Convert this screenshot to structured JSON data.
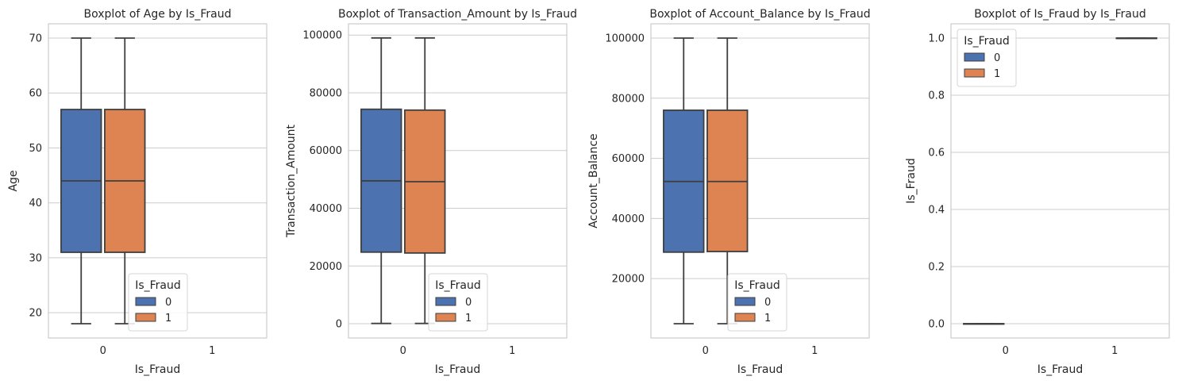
{
  "chart_data": [
    {
      "type": "boxplot",
      "title": "Boxplot of Age by Is_Fraud",
      "xlabel": "Is_Fraud",
      "ylabel": "Age",
      "categories": [
        "0",
        "1"
      ],
      "ylim": [
        15.4,
        72.6
      ],
      "yticks": [
        20,
        30,
        40,
        50,
        60,
        70
      ],
      "ytick_labels": [
        "20",
        "30",
        "40",
        "50",
        "60",
        "70"
      ],
      "series": [
        {
          "name": "0",
          "stats": [
            {
              "whislo": 18,
              "q1": 31,
              "med": 44,
              "q3": 57,
              "whishi": 70
            }
          ]
        },
        {
          "name": "1",
          "stats": [
            {
              "whislo": 18,
              "q1": 31,
              "med": 44,
              "q3": 57,
              "whishi": 70
            }
          ]
        }
      ],
      "legend": {
        "title": "Is_Fraud",
        "placement": "lower-center"
      },
      "grid": "y"
    },
    {
      "type": "boxplot",
      "title": "Boxplot of Transaction_Amount by Is_Fraud",
      "xlabel": "Is_Fraud",
      "ylabel": "Transaction_Amount",
      "categories": [
        "0",
        "1"
      ],
      "ylim": [
        -4940,
        103900
      ],
      "yticks": [
        0,
        20000,
        40000,
        60000,
        80000,
        100000
      ],
      "ytick_labels": [
        "0",
        "20000",
        "40000",
        "60000",
        "80000",
        "100000"
      ],
      "series": [
        {
          "name": "0",
          "stats": [
            {
              "whislo": 100,
              "q1": 24800,
              "med": 49500,
              "q3": 74300,
              "whishi": 99000
            }
          ]
        },
        {
          "name": "1",
          "stats": [
            {
              "whislo": 100,
              "q1": 24500,
              "med": 49200,
              "q3": 74000,
              "whishi": 99000
            }
          ]
        }
      ],
      "legend": {
        "title": "Is_Fraud",
        "placement": "lower-center"
      },
      "grid": "y"
    },
    {
      "type": "boxplot",
      "title": "Boxplot of Account_Balance by Is_Fraud",
      "xlabel": "Is_Fraud",
      "ylabel": "Account_Balance",
      "categories": [
        "0",
        "1"
      ],
      "ylim": [
        250,
        104750
      ],
      "yticks": [
        20000,
        40000,
        60000,
        80000,
        100000
      ],
      "ytick_labels": [
        "20000",
        "40000",
        "60000",
        "80000",
        "100000"
      ],
      "series": [
        {
          "name": "0",
          "stats": [
            {
              "whislo": 5000,
              "q1": 28800,
              "med": 52300,
              "q3": 76000,
              "whishi": 100000
            }
          ]
        },
        {
          "name": "1",
          "stats": [
            {
              "whislo": 5000,
              "q1": 29000,
              "med": 52300,
              "q3": 76000,
              "whishi": 100000
            }
          ]
        }
      ],
      "legend": {
        "title": "Is_Fraud",
        "placement": "lower-center"
      },
      "grid": "y"
    },
    {
      "type": "boxplot",
      "title": "Boxplot of Is_Fraud by Is_Fraud",
      "xlabel": "Is_Fraud",
      "ylabel": "Is_Fraud",
      "categories": [
        "0",
        "1"
      ],
      "ylim": [
        -0.05,
        1.05
      ],
      "yticks": [
        0,
        0.2,
        0.4,
        0.6,
        0.8,
        1.0
      ],
      "ytick_labels": [
        "0.0",
        "0.2",
        "0.4",
        "0.6",
        "0.8",
        "1.0"
      ],
      "series": [
        {
          "name": "0",
          "stats": [
            {
              "whislo": 0,
              "q1": 0,
              "med": 0,
              "q3": 0,
              "whishi": 0
            },
            null
          ]
        },
        {
          "name": "1",
          "stats": [
            null,
            {
              "whislo": 1,
              "q1": 1,
              "med": 1,
              "q3": 1,
              "whishi": 1
            }
          ]
        }
      ],
      "legend": {
        "title": "Is_Fraud",
        "placement": "upper-left"
      },
      "grid": "y"
    }
  ],
  "colors": {
    "series": [
      "#4c72b0",
      "#dd8452"
    ],
    "grid": "#cccccc",
    "spine": "#cccccc",
    "line": "#3f3f3f",
    "text": "#262626"
  }
}
